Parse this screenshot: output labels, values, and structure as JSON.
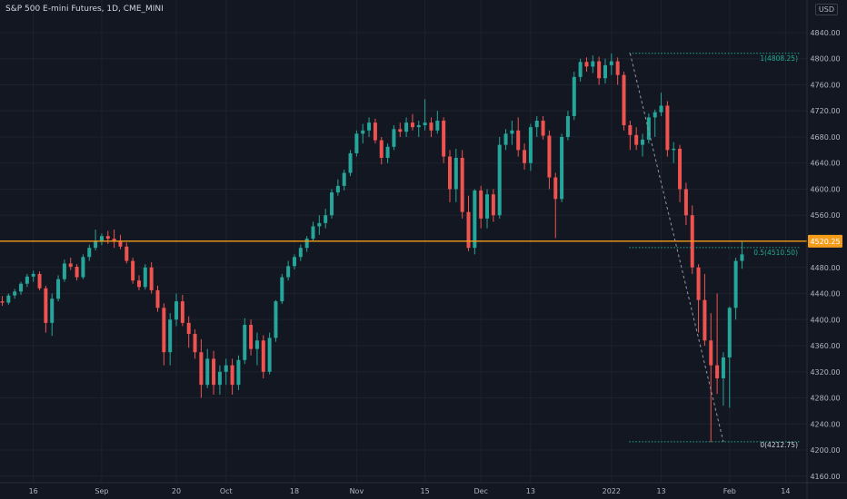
{
  "header": {
    "title": "S&P 500 E-mini Futures, 1D, CME_MINI",
    "currency": "USD"
  },
  "chart_data": {
    "type": "candlestick",
    "title": "S&P 500 E-mini Futures, 1D, CME_MINI",
    "ylim": [
      4150,
      4890
    ],
    "y_ticks": [
      4160,
      4200,
      4240,
      4280,
      4320,
      4360,
      4400,
      4440,
      4480,
      4520,
      4560,
      4600,
      4640,
      4680,
      4720,
      4760,
      4800,
      4840
    ],
    "y_tick_labels": [
      "4160.00",
      "4200.00",
      "4240.00",
      "4280.00",
      "4320.00",
      "4360.00",
      "4400.00",
      "4440.00",
      "4480.00",
      "4520.00",
      "4560.00",
      "4600.00",
      "4640.00",
      "4680.00",
      "4720.00",
      "4760.00",
      "4800.00",
      "4840.00"
    ],
    "x_tick_labels": [
      {
        "label": "16",
        "i": 5
      },
      {
        "label": "Sep",
        "i": 16
      },
      {
        "label": "20",
        "i": 28
      },
      {
        "label": "Oct",
        "i": 36
      },
      {
        "label": "18",
        "i": 47
      },
      {
        "label": "Nov",
        "i": 57
      },
      {
        "label": "15",
        "i": 68
      },
      {
        "label": "Dec",
        "i": 77
      },
      {
        "label": "13",
        "i": 85
      },
      {
        "label": "2022",
        "i": 98
      },
      {
        "label": "13",
        "i": 106
      },
      {
        "label": "Feb",
        "i": 117
      },
      {
        "label": "14",
        "i": 126
      }
    ],
    "candles": [
      {
        "o": 4428,
        "h": 4436,
        "l": 4421,
        "c": 4426
      },
      {
        "o": 4426,
        "h": 4440,
        "l": 4423,
        "c": 4437
      },
      {
        "o": 4437,
        "h": 4447,
        "l": 4432,
        "c": 4443
      },
      {
        "o": 4443,
        "h": 4458,
        "l": 4438,
        "c": 4455
      },
      {
        "o": 4455,
        "h": 4470,
        "l": 4450,
        "c": 4466
      },
      {
        "o": 4466,
        "h": 4475,
        "l": 4458,
        "c": 4470
      },
      {
        "o": 4470,
        "h": 4474,
        "l": 4445,
        "c": 4448
      },
      {
        "o": 4448,
        "h": 4452,
        "l": 4380,
        "c": 4395
      },
      {
        "o": 4395,
        "h": 4440,
        "l": 4375,
        "c": 4432
      },
      {
        "o": 4432,
        "h": 4468,
        "l": 4428,
        "c": 4462
      },
      {
        "o": 4462,
        "h": 4492,
        "l": 4458,
        "c": 4486
      },
      {
        "o": 4486,
        "h": 4495,
        "l": 4476,
        "c": 4481
      },
      {
        "o": 4481,
        "h": 4485,
        "l": 4460,
        "c": 4465
      },
      {
        "o": 4465,
        "h": 4500,
        "l": 4462,
        "c": 4496
      },
      {
        "o": 4496,
        "h": 4515,
        "l": 4490,
        "c": 4510
      },
      {
        "o": 4510,
        "h": 4538,
        "l": 4506,
        "c": 4520
      },
      {
        "o": 4520,
        "h": 4532,
        "l": 4514,
        "c": 4528
      },
      {
        "o": 4528,
        "h": 4536,
        "l": 4516,
        "c": 4524
      },
      {
        "o": 4524,
        "h": 4538,
        "l": 4510,
        "c": 4520
      },
      {
        "o": 4520,
        "h": 4530,
        "l": 4508,
        "c": 4512
      },
      {
        "o": 4512,
        "h": 4518,
        "l": 4486,
        "c": 4490
      },
      {
        "o": 4490,
        "h": 4495,
        "l": 4455,
        "c": 4460
      },
      {
        "o": 4460,
        "h": 4468,
        "l": 4445,
        "c": 4450
      },
      {
        "o": 4450,
        "h": 4485,
        "l": 4446,
        "c": 4480
      },
      {
        "o": 4480,
        "h": 4488,
        "l": 4440,
        "c": 4445
      },
      {
        "o": 4445,
        "h": 4452,
        "l": 4412,
        "c": 4418
      },
      {
        "o": 4418,
        "h": 4425,
        "l": 4330,
        "c": 4350
      },
      {
        "o": 4350,
        "h": 4410,
        "l": 4330,
        "c": 4400
      },
      {
        "o": 4400,
        "h": 4440,
        "l": 4390,
        "c": 4428
      },
      {
        "o": 4428,
        "h": 4438,
        "l": 4390,
        "c": 4395
      },
      {
        "o": 4395,
        "h": 4405,
        "l": 4357,
        "c": 4378
      },
      {
        "o": 4378,
        "h": 4385,
        "l": 4340,
        "c": 4350
      },
      {
        "o": 4350,
        "h": 4370,
        "l": 4280,
        "c": 4300
      },
      {
        "o": 4300,
        "h": 4355,
        "l": 4295,
        "c": 4340
      },
      {
        "o": 4340,
        "h": 4352,
        "l": 4285,
        "c": 4300
      },
      {
        "o": 4300,
        "h": 4330,
        "l": 4285,
        "c": 4320
      },
      {
        "o": 4320,
        "h": 4340,
        "l": 4300,
        "c": 4330
      },
      {
        "o": 4330,
        "h": 4340,
        "l": 4285,
        "c": 4300
      },
      {
        "o": 4300,
        "h": 4345,
        "l": 4292,
        "c": 4338
      },
      {
        "o": 4338,
        "h": 4402,
        "l": 4332,
        "c": 4392
      },
      {
        "o": 4392,
        "h": 4400,
        "l": 4345,
        "c": 4355
      },
      {
        "o": 4355,
        "h": 4380,
        "l": 4330,
        "c": 4368
      },
      {
        "o": 4368,
        "h": 4376,
        "l": 4310,
        "c": 4320
      },
      {
        "o": 4320,
        "h": 4380,
        "l": 4316,
        "c": 4372
      },
      {
        "o": 4372,
        "h": 4430,
        "l": 4366,
        "c": 4428
      },
      {
        "o": 4428,
        "h": 4470,
        "l": 4424,
        "c": 4465
      },
      {
        "o": 4465,
        "h": 4490,
        "l": 4460,
        "c": 4482
      },
      {
        "o": 4482,
        "h": 4500,
        "l": 4477,
        "c": 4496
      },
      {
        "o": 4496,
        "h": 4515,
        "l": 4490,
        "c": 4510
      },
      {
        "o": 4510,
        "h": 4528,
        "l": 4504,
        "c": 4524
      },
      {
        "o": 4524,
        "h": 4550,
        "l": 4520,
        "c": 4543
      },
      {
        "o": 4543,
        "h": 4560,
        "l": 4530,
        "c": 4548
      },
      {
        "o": 4548,
        "h": 4570,
        "l": 4540,
        "c": 4560
      },
      {
        "o": 4560,
        "h": 4600,
        "l": 4555,
        "c": 4595
      },
      {
        "o": 4595,
        "h": 4615,
        "l": 4590,
        "c": 4605
      },
      {
        "o": 4605,
        "h": 4630,
        "l": 4598,
        "c": 4625
      },
      {
        "o": 4625,
        "h": 4660,
        "l": 4620,
        "c": 4655
      },
      {
        "o": 4655,
        "h": 4690,
        "l": 4650,
        "c": 4685
      },
      {
        "o": 4685,
        "h": 4700,
        "l": 4670,
        "c": 4690
      },
      {
        "o": 4690,
        "h": 4710,
        "l": 4680,
        "c": 4702
      },
      {
        "o": 4702,
        "h": 4708,
        "l": 4670,
        "c": 4675
      },
      {
        "o": 4675,
        "h": 4680,
        "l": 4638,
        "c": 4648
      },
      {
        "o": 4648,
        "h": 4670,
        "l": 4640,
        "c": 4665
      },
      {
        "o": 4665,
        "h": 4698,
        "l": 4660,
        "c": 4692
      },
      {
        "o": 4692,
        "h": 4702,
        "l": 4680,
        "c": 4688
      },
      {
        "o": 4688,
        "h": 4710,
        "l": 4680,
        "c": 4702
      },
      {
        "o": 4702,
        "h": 4715,
        "l": 4690,
        "c": 4695
      },
      {
        "o": 4695,
        "h": 4705,
        "l": 4680,
        "c": 4698
      },
      {
        "o": 4698,
        "h": 4738,
        "l": 4690,
        "c": 4702
      },
      {
        "o": 4702,
        "h": 4710,
        "l": 4680,
        "c": 4690
      },
      {
        "o": 4690,
        "h": 4720,
        "l": 4685,
        "c": 4705
      },
      {
        "o": 4705,
        "h": 4710,
        "l": 4640,
        "c": 4650
      },
      {
        "o": 4650,
        "h": 4660,
        "l": 4580,
        "c": 4600
      },
      {
        "o": 4600,
        "h": 4662,
        "l": 4580,
        "c": 4648
      },
      {
        "o": 4648,
        "h": 4660,
        "l": 4555,
        "c": 4565
      },
      {
        "o": 4565,
        "h": 4590,
        "l": 4505,
        "c": 4510
      },
      {
        "o": 4510,
        "h": 4600,
        "l": 4500,
        "c": 4598
      },
      {
        "o": 4598,
        "h": 4605,
        "l": 4540,
        "c": 4555
      },
      {
        "o": 4555,
        "h": 4600,
        "l": 4540,
        "c": 4592
      },
      {
        "o": 4592,
        "h": 4600,
        "l": 4550,
        "c": 4560
      },
      {
        "o": 4560,
        "h": 4680,
        "l": 4555,
        "c": 4668
      },
      {
        "o": 4668,
        "h": 4692,
        "l": 4660,
        "c": 4685
      },
      {
        "o": 4685,
        "h": 4705,
        "l": 4668,
        "c": 4690
      },
      {
        "o": 4690,
        "h": 4710,
        "l": 4650,
        "c": 4660
      },
      {
        "o": 4660,
        "h": 4670,
        "l": 4630,
        "c": 4640
      },
      {
        "o": 4640,
        "h": 4700,
        "l": 4628,
        "c": 4695
      },
      {
        "o": 4695,
        "h": 4712,
        "l": 4680,
        "c": 4705
      },
      {
        "o": 4705,
        "h": 4712,
        "l": 4676,
        "c": 4682
      },
      {
        "o": 4682,
        "h": 4690,
        "l": 4600,
        "c": 4618
      },
      {
        "o": 4618,
        "h": 4625,
        "l": 4525,
        "c": 4585
      },
      {
        "o": 4585,
        "h": 4685,
        "l": 4580,
        "c": 4680
      },
      {
        "o": 4680,
        "h": 4720,
        "l": 4675,
        "c": 4712
      },
      {
        "o": 4712,
        "h": 4780,
        "l": 4706,
        "c": 4772
      },
      {
        "o": 4772,
        "h": 4800,
        "l": 4765,
        "c": 4795
      },
      {
        "o": 4795,
        "h": 4802,
        "l": 4780,
        "c": 4788
      },
      {
        "o": 4788,
        "h": 4805,
        "l": 4778,
        "c": 4796
      },
      {
        "o": 4796,
        "h": 4803,
        "l": 4760,
        "c": 4770
      },
      {
        "o": 4770,
        "h": 4800,
        "l": 4762,
        "c": 4790
      },
      {
        "o": 4790,
        "h": 4808,
        "l": 4775,
        "c": 4796
      },
      {
        "o": 4796,
        "h": 4802,
        "l": 4760,
        "c": 4775
      },
      {
        "o": 4775,
        "h": 4780,
        "l": 4690,
        "c": 4698
      },
      {
        "o": 4698,
        "h": 4705,
        "l": 4660,
        "c": 4683
      },
      {
        "o": 4683,
        "h": 4695,
        "l": 4660,
        "c": 4668
      },
      {
        "o": 4668,
        "h": 4685,
        "l": 4650,
        "c": 4676
      },
      {
        "o": 4676,
        "h": 4716,
        "l": 4670,
        "c": 4710
      },
      {
        "o": 4710,
        "h": 4722,
        "l": 4680,
        "c": 4718
      },
      {
        "o": 4718,
        "h": 4748,
        "l": 4712,
        "c": 4728
      },
      {
        "o": 4728,
        "h": 4735,
        "l": 4650,
        "c": 4660
      },
      {
        "o": 4660,
        "h": 4672,
        "l": 4640,
        "c": 4662
      },
      {
        "o": 4662,
        "h": 4668,
        "l": 4580,
        "c": 4600
      },
      {
        "o": 4600,
        "h": 4610,
        "l": 4545,
        "c": 4560
      },
      {
        "o": 4560,
        "h": 4575,
        "l": 4470,
        "c": 4480
      },
      {
        "o": 4480,
        "h": 4485,
        "l": 4380,
        "c": 4430
      },
      {
        "o": 4430,
        "h": 4470,
        "l": 4360,
        "c": 4368
      },
      {
        "o": 4368,
        "h": 4410,
        "l": 4212,
        "c": 4330
      },
      {
        "o": 4330,
        "h": 4440,
        "l": 4286,
        "c": 4310
      },
      {
        "o": 4310,
        "h": 4350,
        "l": 4268,
        "c": 4342
      },
      {
        "o": 4342,
        "h": 4420,
        "l": 4265,
        "c": 4418
      },
      {
        "o": 4418,
        "h": 4495,
        "l": 4400,
        "c": 4490
      },
      {
        "o": 4490,
        "h": 4520,
        "l": 4478,
        "c": 4500
      }
    ],
    "price_line": {
      "value": 4520.25,
      "label": "4520.25",
      "color": "#f59d1a"
    },
    "fibonacci": {
      "from_index": 101,
      "to_index": 128,
      "levels": [
        {
          "label": "1(4808.25)",
          "value": 4808.25
        },
        {
          "label": "0.5(4510.50)",
          "value": 4510.5
        },
        {
          "label": "0(4212.75)",
          "value": 4212.75
        }
      ],
      "color": "#22ab94"
    },
    "trend_line": {
      "from_index": 101,
      "from_value": 4808.25,
      "to_index": 116,
      "to_value": 4212.75
    },
    "colors": {
      "up": "#26a69a",
      "down": "#ef5350",
      "grid": "#1e222d",
      "axis_text": "#b2b5be",
      "bg": "#131722"
    }
  }
}
